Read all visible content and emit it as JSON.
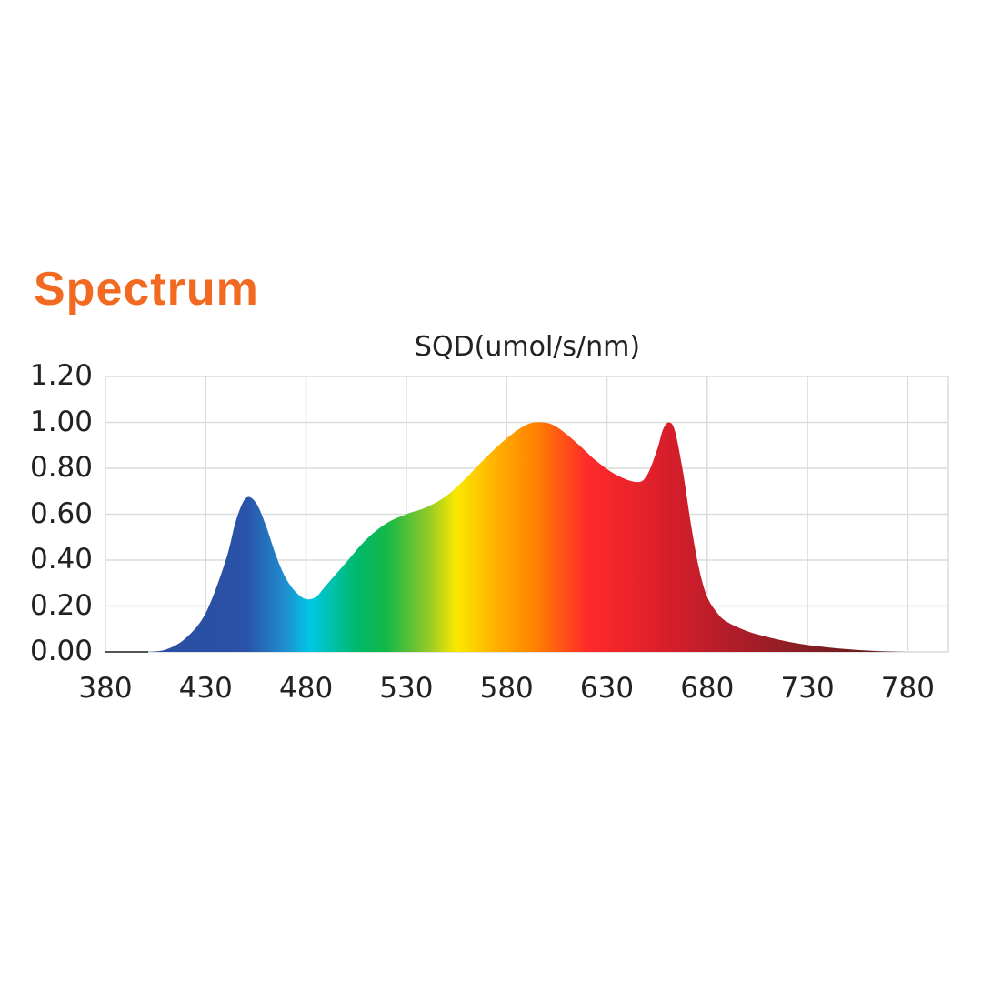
{
  "header": {
    "title": "Spectrum",
    "title_color": "#f26a21"
  },
  "chart": {
    "title": "SQD(umol/s/nm)",
    "y_ticks": [
      "0.00",
      "0.20",
      "0.40",
      "0.60",
      "0.80",
      "1.00",
      "1.20"
    ],
    "x_ticks": [
      "380",
      "430",
      "480",
      "530",
      "580",
      "630",
      "680",
      "730",
      "780"
    ]
  },
  "chart_data": {
    "type": "area",
    "title": "SQD(umol/s/nm)",
    "xlabel": "",
    "ylabel": "SQD(umol/s/nm)",
    "xlim": [
      380,
      800
    ],
    "ylim": [
      0,
      1.2
    ],
    "grid": true,
    "legend": "none",
    "fill": "wavelength-colored spectrum gradient",
    "x": [
      400,
      410,
      420,
      430,
      440,
      445,
      450,
      455,
      460,
      465,
      470,
      475,
      480,
      485,
      490,
      500,
      510,
      520,
      530,
      540,
      550,
      560,
      570,
      580,
      590,
      598,
      605,
      615,
      625,
      635,
      645,
      650,
      655,
      658,
      661,
      664,
      668,
      672,
      676,
      680,
      685,
      690,
      700,
      710,
      720,
      730,
      740,
      750,
      760,
      770,
      780
    ],
    "values": [
      0.0,
      0.01,
      0.06,
      0.17,
      0.4,
      0.57,
      0.67,
      0.65,
      0.55,
      0.42,
      0.32,
      0.26,
      0.23,
      0.24,
      0.29,
      0.39,
      0.49,
      0.56,
      0.6,
      0.63,
      0.68,
      0.76,
      0.85,
      0.93,
      0.99,
      1.0,
      0.98,
      0.91,
      0.83,
      0.77,
      0.74,
      0.77,
      0.88,
      0.97,
      1.0,
      0.96,
      0.78,
      0.55,
      0.36,
      0.24,
      0.17,
      0.13,
      0.09,
      0.065,
      0.045,
      0.03,
      0.02,
      0.012,
      0.006,
      0.002,
      0.0
    ],
    "annotations": []
  },
  "colors": {
    "grid": "#dcdcdc",
    "text": "#222222",
    "spectrum_stops": [
      {
        "nm": 420,
        "color": "#2a4fa3"
      },
      {
        "nm": 450,
        "color": "#2a52a8"
      },
      {
        "nm": 470,
        "color": "#1f8fcf"
      },
      {
        "nm": 482,
        "color": "#00c8e6"
      },
      {
        "nm": 505,
        "color": "#00b96b"
      },
      {
        "nm": 520,
        "color": "#13b848"
      },
      {
        "nm": 540,
        "color": "#8cc82a"
      },
      {
        "nm": 555,
        "color": "#fbe800"
      },
      {
        "nm": 575,
        "color": "#ffb000"
      },
      {
        "nm": 595,
        "color": "#ff8000"
      },
      {
        "nm": 620,
        "color": "#ff2a2a"
      },
      {
        "nm": 660,
        "color": "#d81e2a"
      },
      {
        "nm": 690,
        "color": "#b31d2a"
      },
      {
        "nm": 740,
        "color": "#7a1e22"
      },
      {
        "nm": 780,
        "color": "#5a1a1a"
      }
    ]
  }
}
